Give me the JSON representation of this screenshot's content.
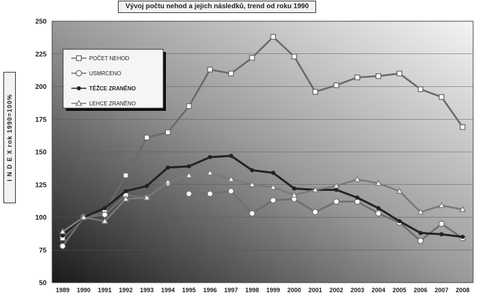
{
  "chart_data": {
    "type": "line",
    "title": "Vývoj počtu nehod a jejich následků, trend od roku 1990",
    "ylabel": "I N D E X  rok 1990=100%",
    "xlabel": "",
    "categories": [
      "1989",
      "1990",
      "1991",
      "1992",
      "1993",
      "1994",
      "1995",
      "1996",
      "1997",
      "1998",
      "1999",
      "2000",
      "2001",
      "2002",
      "2003",
      "2004",
      "2005",
      "2006",
      "2007",
      "2008"
    ],
    "ylim": [
      50,
      250
    ],
    "yticks": [
      50,
      75,
      100,
      125,
      150,
      175,
      200,
      225,
      250
    ],
    "grid": "horizontal",
    "legend_position": "top-left",
    "series": [
      {
        "name": "POČET NEHOD",
        "marker": "square",
        "color": "#6a6a6a",
        "values": [
          84,
          100,
          104,
          132,
          161,
          165,
          185,
          213,
          210,
          222,
          238,
          223,
          196,
          201,
          207,
          208,
          210,
          198,
          192,
          169
        ]
      },
      {
        "name": "USMRCENO",
        "marker": "circle",
        "color": "#6e6e6e",
        "values": [
          78,
          100,
          102,
          117,
          115,
          126,
          118,
          118,
          120,
          103,
          113,
          114,
          104,
          112,
          112,
          103,
          96,
          82,
          95,
          84
        ]
      },
      {
        "name": "TĚŽCE ZRANĚNO",
        "marker": "diamond",
        "color": "#222222",
        "values": [
          86,
          100,
          107,
          120,
          124,
          138,
          139,
          146,
          147,
          136,
          134,
          122,
          121,
          121,
          115,
          107,
          97,
          88,
          87,
          85
        ]
      },
      {
        "name": "LEHCE ZRANĚNO",
        "marker": "triangle",
        "color": "#7a7a7a",
        "values": [
          89,
          100,
          97,
          114,
          115,
          127,
          132,
          134,
          129,
          125,
          123,
          117,
          121,
          124,
          129,
          126,
          120,
          104,
          109,
          106
        ]
      }
    ]
  }
}
